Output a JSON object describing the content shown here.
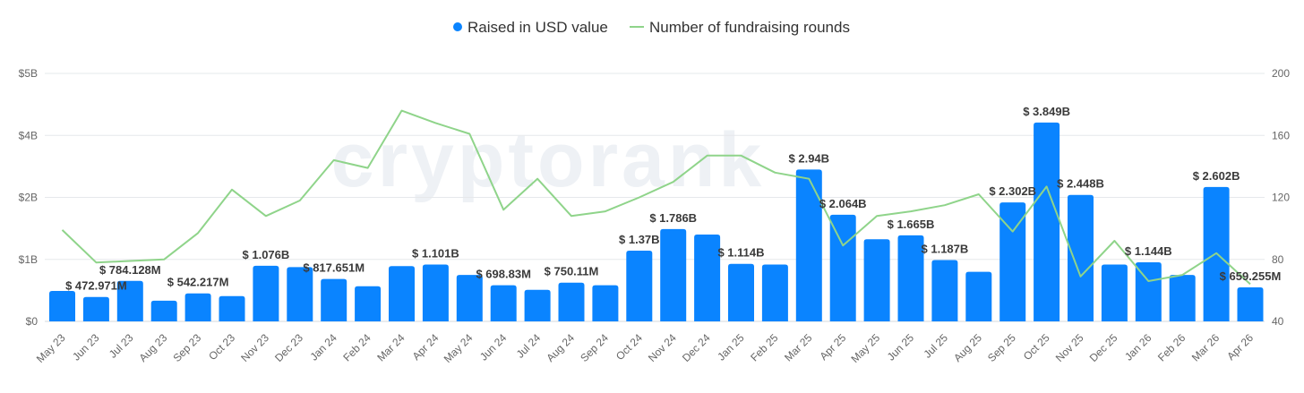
{
  "watermark": "cryptorank",
  "chart_data": {
    "type": "bar",
    "categories": [
      "May 23",
      "Jun 23",
      "Jul 23",
      "Aug 23",
      "Sep 23",
      "Oct 23",
      "Nov 23",
      "Dec 23",
      "Jan 24",
      "Feb 24",
      "Mar 24",
      "Apr 24",
      "May 24",
      "Jun 24",
      "Jul 24",
      "Aug 24",
      "Sep 24",
      "Oct 24",
      "Nov 24",
      "Dec 24",
      "Jan 25",
      "Feb 25",
      "Mar 25",
      "Apr 25",
      "May 25",
      "Jun 25",
      "Jul 25",
      "Aug 25",
      "Sep 25",
      "Oct 25",
      "Nov 25",
      "Dec 25",
      "Jan 26",
      "Feb 26",
      "Mar 26",
      "Apr 26"
    ],
    "legend": [
      {
        "name": "Raised in USD value",
        "color": "#0a84ff",
        "marker": "dot"
      },
      {
        "name": "Number of fundraising rounds",
        "color": "#8fd48a",
        "marker": "line"
      }
    ],
    "series": [
      {
        "name": "Raised in USD value",
        "type": "bar",
        "axis": "left",
        "color": "#0a84ff",
        "values": [
          0.59,
          0.473,
          0.784,
          0.4,
          0.542,
          0.49,
          1.076,
          1.05,
          0.82,
          0.68,
          1.07,
          1.101,
          0.9,
          0.7,
          0.61,
          0.75,
          0.7,
          1.37,
          1.786,
          1.68,
          1.114,
          1.1,
          2.94,
          2.064,
          1.59,
          1.665,
          1.187,
          0.96,
          2.302,
          3.849,
          2.448,
          1.1,
          1.144,
          0.9,
          2.602,
          0.659
        ],
        "labels": [
          "",
          "$ 472.971M",
          "$ 784.128M",
          "",
          "$ 542.217M",
          "",
          "$ 1.076B",
          "",
          "$ 817.651M",
          "",
          "",
          "$ 1.101B",
          "",
          "$ 698.83M",
          "",
          "$ 750.11M",
          "",
          "$ 1.37B",
          "$ 1.786B",
          "",
          "$ 1.114B",
          "",
          "$ 2.94B",
          "$ 2.064B",
          "",
          "$ 1.665B",
          "$ 1.187B",
          "",
          "$ 2.302B",
          "$ 3.849B",
          "$ 2.448B",
          "",
          "$ 1.144B",
          "",
          "$ 2.602B",
          "$ 659.255M"
        ]
      },
      {
        "name": "Number of fundraising rounds",
        "type": "line",
        "axis": "right",
        "color": "#8fd48a",
        "values": [
          99,
          78,
          79,
          80,
          97,
          125,
          108,
          118,
          144,
          139,
          176,
          168,
          161,
          112,
          132,
          108,
          111,
          120,
          130,
          147,
          147,
          136,
          132,
          89,
          108,
          111,
          115,
          122,
          98,
          127,
          69,
          92,
          66,
          70,
          84,
          64
        ]
      }
    ],
    "yleft": {
      "ticks": [
        "$0",
        "$1B",
        "$2B",
        "$4B",
        "$5B"
      ],
      "ylim": [
        0,
        4.8
      ]
    },
    "yright": {
      "ticks": [
        "40",
        "80",
        "120",
        "160",
        "200"
      ],
      "ylim": [
        40,
        200
      ]
    },
    "grid": true,
    "legend_position": "top-center"
  }
}
